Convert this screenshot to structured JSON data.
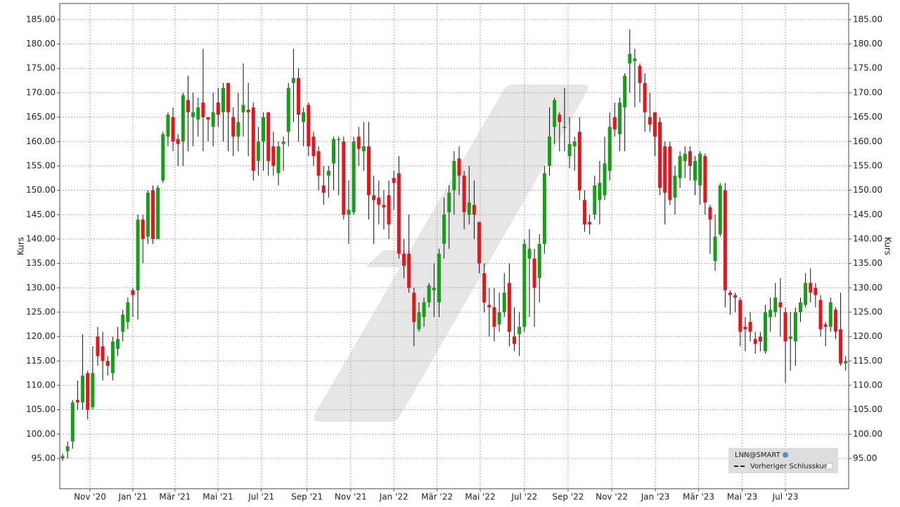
{
  "chart_data": {
    "type": "candlestick",
    "ylabel": "Kurs",
    "legend_title": "LNN@SMART",
    "legend_items": [
      "Vorheriger Schlusskurs"
    ],
    "up_color": "#14a014",
    "down_color": "#e8141c",
    "grid": true,
    "ylim": [
      88.8,
      188.3
    ],
    "yticks": [
      {
        "value": 95,
        "label": "95.00"
      },
      {
        "value": 100,
        "label": "100.00"
      },
      {
        "value": 105,
        "label": "105.00"
      },
      {
        "value": 110,
        "label": "110.00"
      },
      {
        "value": 115,
        "label": "115.00"
      },
      {
        "value": 120,
        "label": "120.00"
      },
      {
        "value": 125,
        "label": "125.00"
      },
      {
        "value": 130,
        "label": "130.00"
      },
      {
        "value": 135,
        "label": "135.00"
      },
      {
        "value": 140,
        "label": "140.00"
      },
      {
        "value": 145,
        "label": "145.00"
      },
      {
        "value": 150,
        "label": "150.00"
      },
      {
        "value": 155,
        "label": "155.00"
      },
      {
        "value": 160,
        "label": "160.00"
      },
      {
        "value": 165,
        "label": "165.00"
      },
      {
        "value": 170,
        "label": "170.00"
      },
      {
        "value": 175,
        "label": "175.00"
      },
      {
        "value": 180,
        "label": "180.00"
      },
      {
        "value": 185,
        "label": "185.00"
      }
    ],
    "xlim": [
      -0.56,
      156.6
    ],
    "xticks": [
      {
        "value": 5.46,
        "label": "Nov '20"
      },
      {
        "value": 14.0,
        "label": "Jan '21"
      },
      {
        "value": 22.4,
        "label": "Mär '21"
      },
      {
        "value": 30.95,
        "label": "Mai '21"
      },
      {
        "value": 39.6,
        "label": "Jul '21"
      },
      {
        "value": 48.7,
        "label": "Sep '21"
      },
      {
        "value": 57.4,
        "label": "Nov '21"
      },
      {
        "value": 66.0,
        "label": "Jan '22"
      },
      {
        "value": 74.6,
        "label": "Mär '22"
      },
      {
        "value": 83.2,
        "label": "Mai '22"
      },
      {
        "value": 92.0,
        "label": "Jul '22"
      },
      {
        "value": 100.7,
        "label": "Sep '22"
      },
      {
        "value": 109.4,
        "label": "Nov '22"
      },
      {
        "value": 118.1,
        "label": "Jan '23"
      },
      {
        "value": 126.7,
        "label": "Mär '23"
      },
      {
        "value": 135.4,
        "label": "Mai '23"
      },
      {
        "value": 144.0,
        "label": "Jul '23"
      }
    ],
    "x": [
      0,
      1,
      2,
      3,
      4,
      5,
      6,
      7,
      8,
      9,
      10,
      11,
      12,
      13,
      14,
      15,
      16,
      17,
      18,
      19,
      20,
      21,
      22,
      23,
      24,
      25,
      26,
      27,
      28,
      29,
      30,
      31,
      32,
      33,
      34,
      35,
      36,
      37,
      38,
      39,
      40,
      41,
      42,
      43,
      44,
      45,
      46,
      47,
      48,
      49,
      50,
      51,
      52,
      53,
      54,
      55,
      56,
      57,
      58,
      59,
      60,
      61,
      62,
      63,
      64,
      65,
      66,
      67,
      68,
      69,
      70,
      71,
      72,
      73,
      74,
      75,
      76,
      77,
      78,
      79,
      80,
      81,
      82,
      83,
      84,
      85,
      86,
      87,
      88,
      89,
      90,
      91,
      92,
      93,
      94,
      95,
      96,
      97,
      98,
      99,
      100,
      101,
      102,
      103,
      104,
      105,
      106,
      107,
      108,
      109,
      110,
      111,
      112,
      113,
      114,
      115,
      116,
      117,
      118,
      119,
      120,
      121,
      122,
      123,
      124,
      125,
      126,
      127,
      128,
      129,
      130,
      131,
      132,
      133,
      134,
      135,
      136,
      137,
      138,
      139,
      140,
      141,
      142,
      143,
      144,
      145,
      146,
      147,
      148,
      149,
      150,
      151,
      152,
      153,
      154,
      155,
      156
    ],
    "open": [
      95,
      96.5,
      98.5,
      107,
      106.5,
      112.5,
      105.5,
      120,
      118,
      115,
      112.5,
      117.5,
      121,
      123,
      129.5,
      129.5,
      144,
      140.5,
      150,
      140,
      152,
      161,
      165,
      160.5,
      160,
      168.5,
      165,
      164.5,
      168,
      165,
      163,
      168,
      166,
      172,
      165,
      161,
      166,
      166.5,
      167,
      156,
      160,
      166,
      159,
      153.5,
      159.5,
      162,
      172,
      173,
      164,
      167.5,
      161,
      158,
      151,
      153,
      155.5,
      160.5,
      160,
      145,
      145.5,
      161,
      158,
      159,
      149,
      148.5,
      147,
      149,
      152.5,
      153.5,
      137,
      137,
      129,
      121.5,
      124,
      127,
      129.5,
      127,
      139,
      145.5,
      150,
      156.5,
      153,
      145,
      147,
      143.5,
      133,
      126.5,
      126,
      122.5,
      125,
      131,
      120,
      120.5,
      122,
      136,
      136,
      132,
      139,
      155,
      163,
      165.5,
      163,
      157,
      159,
      162,
      148,
      143.5,
      145,
      148,
      149,
      154,
      165,
      161.5,
      167,
      176,
      176.5,
      175.5,
      172,
      165,
      166,
      164,
      159,
      159,
      148.5,
      152.5,
      156,
      158,
      152,
      151,
      157,
      146.5,
      135.5,
      141,
      150,
      129,
      128.5,
      127.5,
      122,
      123,
      119.5,
      120,
      117,
      124,
      125,
      127,
      125,
      119.5,
      119,
      125,
      126.5,
      131,
      130,
      127.5,
      122.5,
      122,
      125.5,
      121.5,
      114.5
    ],
    "high": [
      96,
      98.5,
      107,
      111,
      120.5,
      113,
      118,
      122,
      121,
      116,
      120,
      122,
      125.5,
      128,
      130,
      145,
      145,
      150,
      151,
      151,
      162,
      166,
      167,
      161.5,
      170,
      173.5,
      170,
      169,
      179,
      165,
      170,
      171,
      172,
      172,
      167,
      170,
      176,
      172,
      168,
      163,
      166,
      166,
      162,
      160,
      161,
      172,
      179,
      175,
      167,
      168,
      162,
      159,
      155,
      155,
      161,
      161,
      161,
      152,
      161,
      163,
      164,
      164,
      153,
      152,
      150,
      152,
      154,
      157,
      140,
      145,
      130,
      127,
      128,
      131,
      135,
      138,
      148.5,
      151,
      158,
      159,
      154,
      155,
      152,
      143.5,
      135,
      130,
      130,
      129,
      133,
      135,
      126,
      125,
      140,
      142,
      138,
      141,
      155,
      167,
      169,
      166,
      171,
      165,
      161,
      165,
      150,
      145,
      153,
      156,
      161,
      166,
      168,
      169,
      174,
      183,
      179,
      176,
      174,
      170,
      166,
      165,
      160,
      160,
      155,
      158,
      159,
      159,
      157,
      158,
      157.5,
      147,
      145,
      151.5,
      151.5,
      129.5,
      129,
      128,
      124,
      125,
      121,
      121,
      126.5,
      128,
      131,
      132,
      126,
      125,
      126,
      128,
      133,
      134,
      131,
      128.5,
      123,
      128,
      126,
      129,
      116
    ],
    "low": [
      94.5,
      95,
      97,
      105,
      105,
      103,
      105,
      114,
      111,
      112,
      111,
      116,
      119,
      121.5,
      124,
      123.5,
      135,
      139,
      139,
      140,
      151.5,
      159,
      158,
      155,
      155,
      158,
      159,
      161,
      158,
      160,
      159,
      163,
      160,
      158,
      157,
      158,
      161,
      157,
      152,
      153,
      154,
      153,
      153,
      151,
      154,
      159,
      164,
      160,
      159,
      157,
      155,
      150,
      147,
      148.5,
      150,
      149,
      144,
      139,
      145,
      155,
      154,
      144,
      139,
      143,
      142,
      140,
      146,
      136,
      132,
      129,
      118,
      121,
      122,
      126,
      124,
      124,
      136,
      138,
      145,
      149,
      142,
      143,
      140,
      133,
      125,
      120,
      119,
      121,
      124,
      118,
      117,
      116,
      121,
      124,
      122,
      127,
      137,
      153,
      159.5,
      158,
      158,
      154.5,
      154,
      148,
      141.5,
      141,
      144,
      143,
      148,
      152,
      161,
      158,
      158,
      170,
      167,
      168,
      162,
      162,
      157,
      149,
      143,
      147,
      145,
      150.5,
      152.5,
      152,
      149,
      147,
      145,
      137,
      133.5,
      140.5,
      126,
      124.5,
      125,
      118,
      117,
      119,
      116.5,
      117,
      116.5,
      121,
      124,
      120,
      110.5,
      113,
      114,
      123,
      126,
      127,
      126,
      120,
      118,
      121,
      119.5,
      114,
      113
    ],
    "close": [
      95.5,
      97.5,
      106.5,
      106.5,
      112,
      105,
      112.5,
      116,
      115,
      114,
      119,
      119.5,
      124.5,
      127,
      128.5,
      144,
      140,
      149.5,
      140,
      150.5,
      161.5,
      165.5,
      160,
      159.5,
      169.5,
      166,
      166,
      167,
      165,
      164.5,
      166,
      165.5,
      171,
      166,
      161,
      164,
      167.5,
      166,
      154,
      160,
      165,
      156,
      155,
      159,
      160,
      171,
      173,
      165.5,
      166,
      159,
      157,
      153,
      149.5,
      154,
      160.5,
      160.5,
      145,
      146,
      160,
      158.5,
      159,
      149,
      148,
      147,
      146.5,
      143,
      151.5,
      137,
      134.5,
      130,
      123,
      125,
      127,
      130.5,
      130,
      137,
      145,
      149.5,
      156,
      153,
      145.5,
      147.5,
      145,
      135,
      127,
      126,
      122,
      125,
      129,
      121,
      118.5,
      122,
      139,
      138,
      130,
      139,
      153.5,
      161,
      168.5,
      164,
      163,
      159.5,
      160,
      150,
      143,
      143,
      151,
      151.5,
      155.5,
      163,
      162.5,
      168,
      173.5,
      178,
      177,
      172,
      166,
      163.5,
      161,
      150.5,
      149.5,
      148,
      153,
      157,
      157.5,
      155,
      156,
      157.5,
      147.5,
      144,
      140.5,
      151,
      129.5,
      128.5,
      128,
      121,
      121.5,
      121,
      118.5,
      119,
      125,
      125.5,
      128,
      126,
      119,
      120,
      125,
      127,
      131,
      129,
      128.5,
      121.5,
      122,
      127,
      121,
      114.5,
      115
    ]
  }
}
